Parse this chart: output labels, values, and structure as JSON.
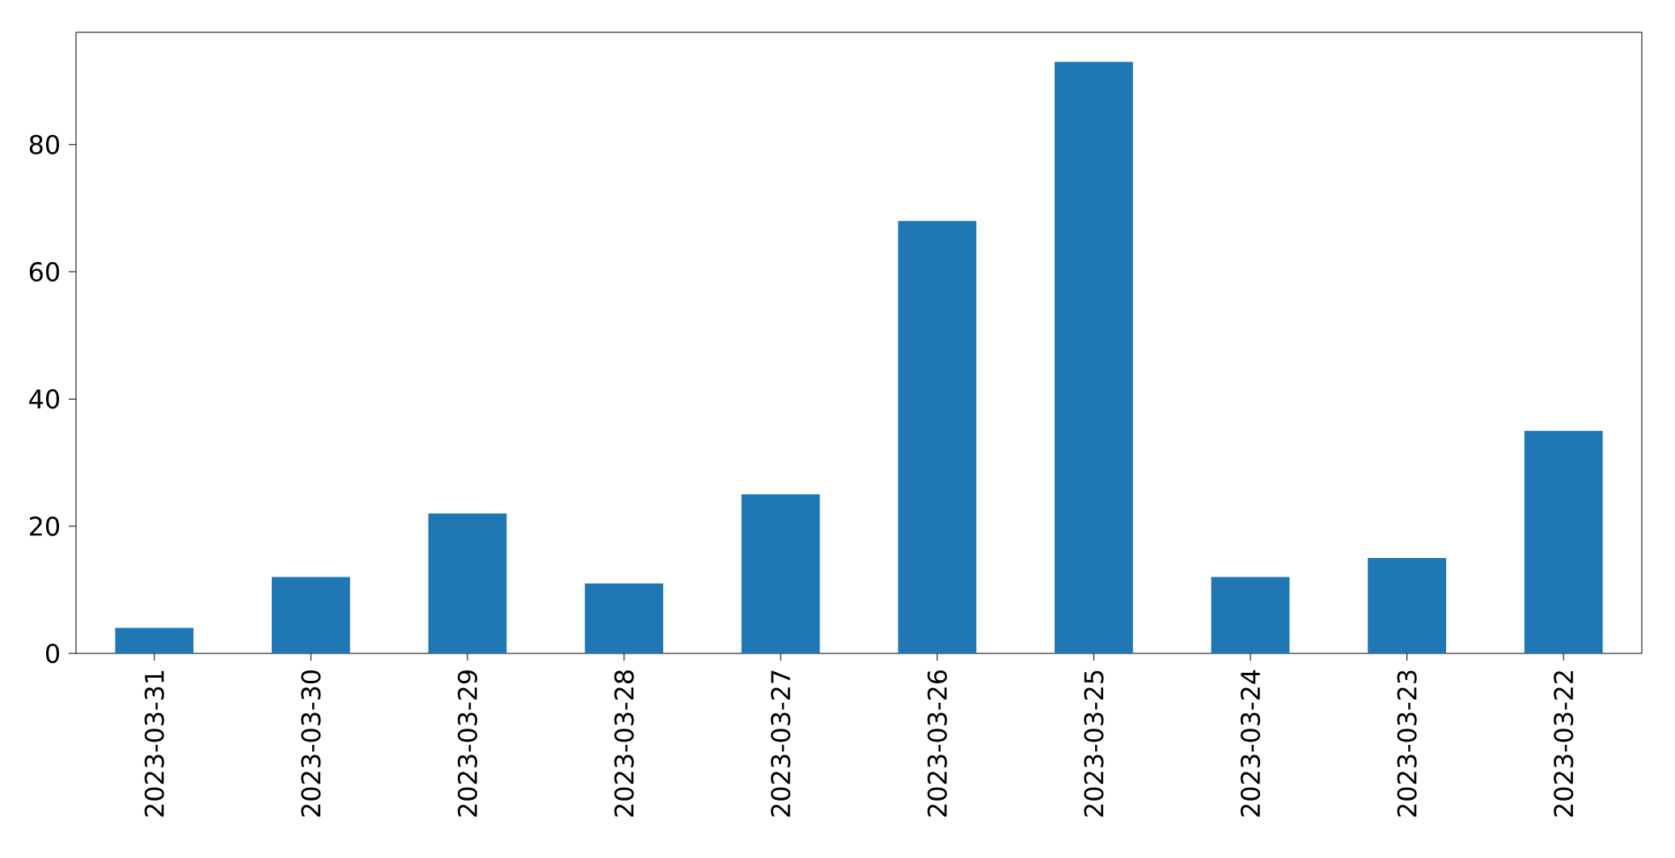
{
  "chart_data": {
    "type": "bar",
    "categories": [
      "2023-03-31",
      "2023-03-30",
      "2023-03-29",
      "2023-03-28",
      "2023-03-27",
      "2023-03-26",
      "2023-03-25",
      "2023-03-24",
      "2023-03-23",
      "2023-03-22"
    ],
    "values": [
      4,
      12,
      22,
      11,
      25,
      68,
      93,
      12,
      15,
      35
    ],
    "color": "#1f77b4",
    "ylim": [
      0,
      97.65
    ],
    "yticks": [
      0,
      20,
      40,
      60,
      80
    ]
  }
}
